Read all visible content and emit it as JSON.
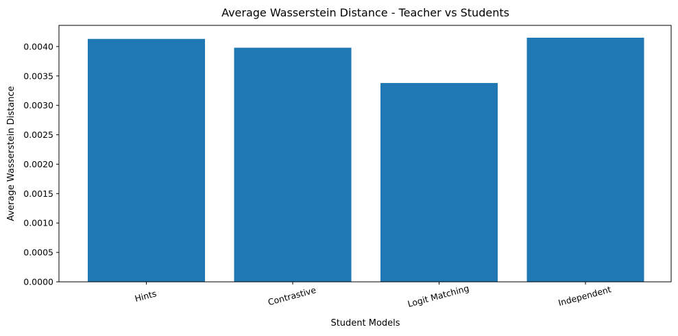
{
  "chart_data": {
    "type": "bar",
    "title": "Average Wasserstein Distance - Teacher vs Students",
    "xlabel": "Student Models",
    "ylabel": "Average Wasserstein Distance",
    "categories": [
      "Hints",
      "Contrastive",
      "Logit Matching",
      "Independent"
    ],
    "values": [
      0.00413,
      0.00398,
      0.00338,
      0.00415
    ],
    "ylim": [
      0,
      0.00436
    ],
    "yticks": [
      "0.0000",
      "0.0005",
      "0.0010",
      "0.0015",
      "0.0020",
      "0.0025",
      "0.0030",
      "0.0035",
      "0.0040"
    ],
    "bar_color": "#1f77b4",
    "grid": false,
    "xtick_rotation_deg": -15
  }
}
